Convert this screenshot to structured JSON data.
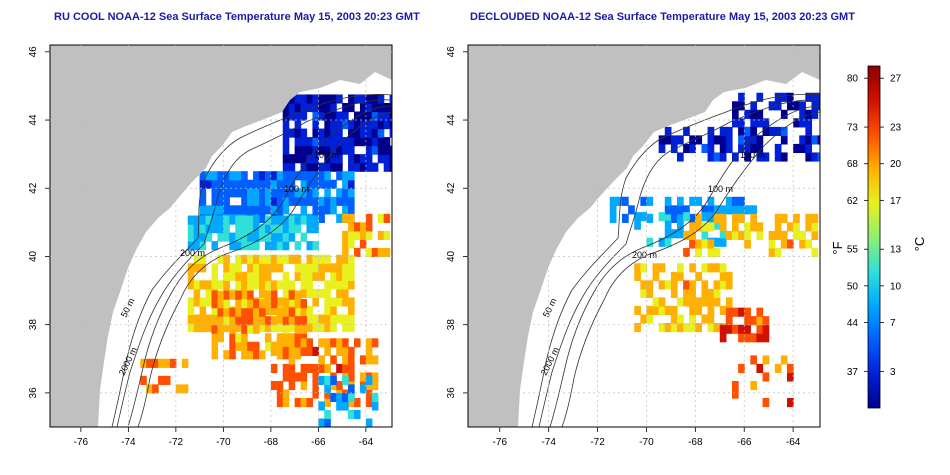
{
  "left_map": {
    "title": "RU COOL NOAA-12 Sea Surface Temperature May 15, 2003 20:23 GMT",
    "variant": "cloudy"
  },
  "right_map": {
    "title": "DECLOUDED NOAA-12 Sea Surface Temperature May 15, 2003 20:23 GMT",
    "variant": "declouded"
  },
  "lon_ticks": [
    "-76",
    "-74",
    "-72",
    "-70",
    "-68",
    "-66",
    "-64"
  ],
  "lat_ticks": [
    "36",
    "38",
    "40",
    "42",
    "44",
    "46"
  ],
  "lon_values": [
    -76,
    -74,
    -72,
    -70,
    -68,
    -66,
    -64
  ],
  "lat_values": [
    36,
    38,
    40,
    42,
    44,
    46
  ],
  "lon_range": [
    -77.3,
    -62.9
  ],
  "lat_range": [
    35.0,
    46.2
  ],
  "contour_labels": {
    "m100": "100 m",
    "m200": "200 m",
    "m50": "50 m",
    "m2000": "2000 m"
  },
  "colorbar": {
    "fahrenheit_label": "°F",
    "celsius_label": "°C",
    "fahrenheit_ticks": [
      "80",
      "73",
      "68",
      "62",
      "55",
      "50",
      "44",
      "37"
    ],
    "celsius_ticks": [
      "27",
      "23",
      "20",
      "17",
      "13",
      "10",
      "7",
      "3"
    ],
    "celsius_values": [
      27,
      23,
      20,
      17,
      13,
      10,
      7,
      3
    ],
    "range_celsius": [
      0,
      28
    ],
    "colors": [
      "#00008c",
      "#0020d8",
      "#0060ff",
      "#00a8ff",
      "#30e0d8",
      "#90f070",
      "#e8f020",
      "#ffb000",
      "#ff5000",
      "#d01000",
      "#8c0000"
    ]
  },
  "colors": {
    "land": "#c0c0c0",
    "grid": "#bdbdbd",
    "title": "#1a1aa8"
  }
}
